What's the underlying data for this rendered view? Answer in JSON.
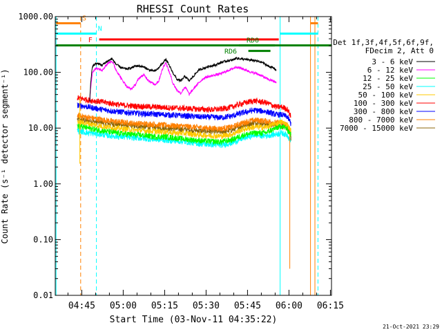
{
  "chart_data": {
    "type": "line",
    "title": "RHESSI Count Rates",
    "xlabel": "Start Time (03-Nov-11 04:35:22)",
    "ylabel": "Count Rate (s⁻¹ detector segment⁻¹)",
    "x_unit": "minutes after 04:35:22",
    "xlim": [
      0,
      100
    ],
    "ylim": [
      0.01,
      1000
    ],
    "y_scale": "log",
    "grid": false,
    "x_ticks": [
      {
        "x": 9.6,
        "label": "04:45"
      },
      {
        "x": 24.6,
        "label": "05:00"
      },
      {
        "x": 39.6,
        "label": "05:15"
      },
      {
        "x": 54.6,
        "label": "05:30"
      },
      {
        "x": 69.6,
        "label": "05:45"
      },
      {
        "x": 84.6,
        "label": "06:00"
      },
      {
        "x": 99.6,
        "label": "06:15"
      }
    ],
    "y_ticks": [
      {
        "y": 1000,
        "label": "1000.00"
      },
      {
        "y": 100,
        "label": "100.00"
      },
      {
        "y": 10,
        "label": "10.00"
      },
      {
        "y": 1,
        "label": "1.00"
      },
      {
        "y": 0.1,
        "label": "0.10"
      },
      {
        "y": 0.01,
        "label": "0.01"
      }
    ],
    "legend": {
      "position": "right",
      "header": [
        "Det 1f,3f,4f,5f,6f,9f,",
        "FDecim 2, Att 0"
      ]
    },
    "series": [
      {
        "name": "3 - 6 keV",
        "color": "#000000",
        "x": [
          12.5,
          13.5,
          15,
          17,
          19,
          20.5,
          22,
          24,
          26,
          27.5,
          29,
          30.5,
          32,
          34,
          36,
          37.5,
          39,
          40,
          41,
          42.5,
          44,
          45.5,
          47,
          48.5,
          50,
          52,
          54,
          56,
          58,
          60,
          62,
          64,
          65.5,
          67,
          69,
          71,
          73,
          75,
          77,
          79,
          80
        ],
        "y": [
          30,
          130,
          145,
          135,
          160,
          175,
          140,
          120,
          115,
          120,
          130,
          130,
          125,
          110,
          105,
          120,
          150,
          170,
          140,
          100,
          75,
          70,
          85,
          70,
          85,
          110,
          120,
          130,
          135,
          150,
          160,
          165,
          180,
          175,
          170,
          165,
          160,
          150,
          130,
          120,
          110
        ]
      },
      {
        "name": "6 - 12 keV",
        "color": "#ff00ff",
        "x": [
          12.5,
          13.5,
          15,
          17,
          19,
          20.5,
          22,
          24,
          26,
          27.5,
          29,
          30.5,
          32,
          34,
          36,
          37.5,
          39,
          40,
          41,
          42.5,
          44,
          45.5,
          47,
          48.5,
          50,
          52,
          54,
          56,
          58,
          60,
          62,
          64,
          65.5,
          67,
          69,
          71,
          73,
          75,
          77,
          79,
          80
        ],
        "y": [
          30,
          100,
          120,
          110,
          145,
          160,
          110,
          75,
          55,
          50,
          60,
          80,
          90,
          70,
          60,
          70,
          120,
          150,
          110,
          65,
          48,
          42,
          55,
          40,
          50,
          65,
          80,
          85,
          90,
          95,
          105,
          115,
          125,
          120,
          110,
          100,
          95,
          85,
          75,
          70,
          65
        ]
      },
      {
        "name": "12 - 25 keV",
        "color": "#00ff00",
        "x": [
          8,
          12,
          16,
          20,
          24,
          28,
          32,
          36,
          40,
          44,
          48,
          52,
          56,
          60,
          64,
          68,
          72,
          76,
          80,
          82,
          84,
          85.3
        ],
        "y": [
          11,
          10,
          9.2,
          8.5,
          8,
          7.7,
          7.4,
          7,
          7,
          6.6,
          6.3,
          6,
          5.8,
          5.7,
          6.2,
          7.5,
          8.2,
          8.2,
          10,
          11,
          9.5,
          7.5
        ]
      },
      {
        "name": "25 - 50 keV",
        "color": "#00ffff",
        "x": [
          8,
          12,
          16,
          20,
          24,
          28,
          32,
          36,
          40,
          44,
          48,
          52,
          56,
          60,
          64,
          68,
          72,
          76,
          80,
          82,
          84,
          85.3
        ],
        "y": [
          9,
          8.2,
          7.8,
          7.3,
          7,
          6.8,
          6.5,
          6.3,
          6.1,
          5.9,
          5.6,
          5.3,
          5.1,
          5,
          5.4,
          6.6,
          7.5,
          7.3,
          7.8,
          8.2,
          7.5,
          6
        ]
      },
      {
        "name": "50 - 100 keV",
        "color": "#ffc800",
        "x": [
          8,
          12,
          16,
          20,
          24,
          28,
          32,
          36,
          40,
          44,
          48,
          52,
          56,
          60,
          64,
          68,
          72,
          76,
          80,
          82,
          84,
          85.3
        ],
        "y": [
          13,
          12,
          11,
          10.3,
          9.8,
          9.3,
          9,
          8.8,
          8.5,
          8.2,
          8,
          7.6,
          7.4,
          7.2,
          7.8,
          9.5,
          10.5,
          10.3,
          12,
          13,
          11.5,
          9
        ]
      },
      {
        "name": "100 - 300 keV",
        "color": "#ff0000",
        "x": [
          8,
          12,
          16,
          20,
          24,
          28,
          32,
          36,
          40,
          44,
          48,
          52,
          56,
          60,
          64,
          68,
          72,
          76,
          80,
          82,
          84,
          85.3
        ],
        "y": [
          35,
          32,
          30,
          28,
          26,
          25,
          24.5,
          24,
          23.5,
          23,
          22.5,
          22,
          21.5,
          22,
          24,
          28,
          31,
          29,
          24,
          24,
          22,
          16
        ]
      },
      {
        "name": "300 - 800 keV",
        "color": "#0000ff",
        "x": [
          8,
          12,
          16,
          20,
          24,
          28,
          32,
          36,
          40,
          44,
          48,
          52,
          56,
          60,
          64,
          68,
          72,
          76,
          80,
          82,
          84,
          85.3
        ],
        "y": [
          26,
          24,
          22,
          20.5,
          19.5,
          18.8,
          18.2,
          17.8,
          17.5,
          17,
          16.5,
          16,
          15.8,
          15.5,
          16.5,
          19,
          21,
          20,
          17.5,
          17.5,
          16,
          12
        ]
      },
      {
        "name": "800 - 7000 keV",
        "color": "#ff8000",
        "x": [
          8,
          12,
          16,
          20,
          24,
          28,
          32,
          36,
          40,
          44,
          48,
          52,
          56,
          60,
          64,
          68,
          72,
          76,
          80,
          82,
          84,
          85.3
        ],
        "y": [
          17,
          15.5,
          14.5,
          13.5,
          12.8,
          12.3,
          12,
          11.7,
          11.3,
          11,
          10.7,
          10.3,
          10,
          9.8,
          10.5,
          12.5,
          14,
          13.5,
          12.5,
          12.5,
          11.5,
          8
        ]
      },
      {
        "name": "7000 - 15000 keV",
        "color": "#8b6508",
        "x": [
          8,
          12,
          16,
          20,
          24,
          28,
          32,
          36,
          40,
          44,
          48,
          52,
          56,
          60,
          64,
          68,
          72,
          76,
          80,
          82,
          84,
          85.3
        ],
        "y": [
          14.5,
          13.5,
          12.8,
          12,
          11.4,
          11,
          10.6,
          10.3,
          10,
          9.7,
          9.4,
          9,
          8.8,
          8.6,
          9.3,
          11,
          12.5,
          12,
          11,
          11,
          10,
          7
        ]
      }
    ],
    "drops": [
      {
        "color": "#ffc800",
        "x": 8.9,
        "from": 35,
        "to": 2.3
      },
      {
        "color": "#ff8000",
        "x": 84.9,
        "from": 8,
        "to": 0.03
      },
      {
        "color": "#8b6508",
        "x": 85.3,
        "from": 7,
        "to": 6
      }
    ],
    "vlines": [
      {
        "x": 0.3,
        "color": "#00ffff",
        "dashed": false
      },
      {
        "x": 9.2,
        "color": "#ff8000",
        "dashed": true
      },
      {
        "x": 14.9,
        "color": "#00ffff",
        "dashed": true
      },
      {
        "x": 81.4,
        "color": "#00ffff",
        "dashed": false
      },
      {
        "x": 92.4,
        "color": "#ff8000",
        "dashed": false
      },
      {
        "x": 94.0,
        "color": "#ff8000",
        "dashed": false
      },
      {
        "x": 95.1,
        "color": "#00ffff",
        "dashed": true
      }
    ],
    "flag_bars": [
      {
        "label": "S",
        "color": "#ff8000",
        "y": 760,
        "segments": [
          [
            0.3,
            9.2
          ],
          [
            92.4,
            95.1
          ]
        ],
        "label_x": 10.5,
        "label_side": "above"
      },
      {
        "label": "N",
        "color": "#00ffff",
        "y": 495,
        "segments": [
          [
            0.3,
            14.9
          ],
          [
            81.4,
            95.1
          ]
        ],
        "label_x": 16.2,
        "label_side": "above"
      },
      {
        "label": "F",
        "color": "#ff0000",
        "y": 390,
        "segments": [
          [
            15.9,
            80.9
          ]
        ],
        "label_x": 12.7,
        "label_side": "left"
      },
      {
        "label": "RD0",
        "color": "#008000",
        "y": 305,
        "segments": [
          [
            66.5,
            79.5
          ]
        ],
        "label_x": 71.5,
        "label_side": "above"
      },
      {
        "label": "RD6",
        "color": "#008000",
        "y": 242,
        "segments": [
          [
            69.9,
            77.9
          ]
        ],
        "label_x": 63.5,
        "label_side": "left"
      },
      {
        "label": "",
        "color": "#008000",
        "y": 305,
        "segments": [
          [
            0.3,
            99.9
          ]
        ],
        "label_x": 0,
        "label_side": "none"
      }
    ]
  },
  "footer": {
    "timestamp": "21-Oct-2021 23:29"
  }
}
